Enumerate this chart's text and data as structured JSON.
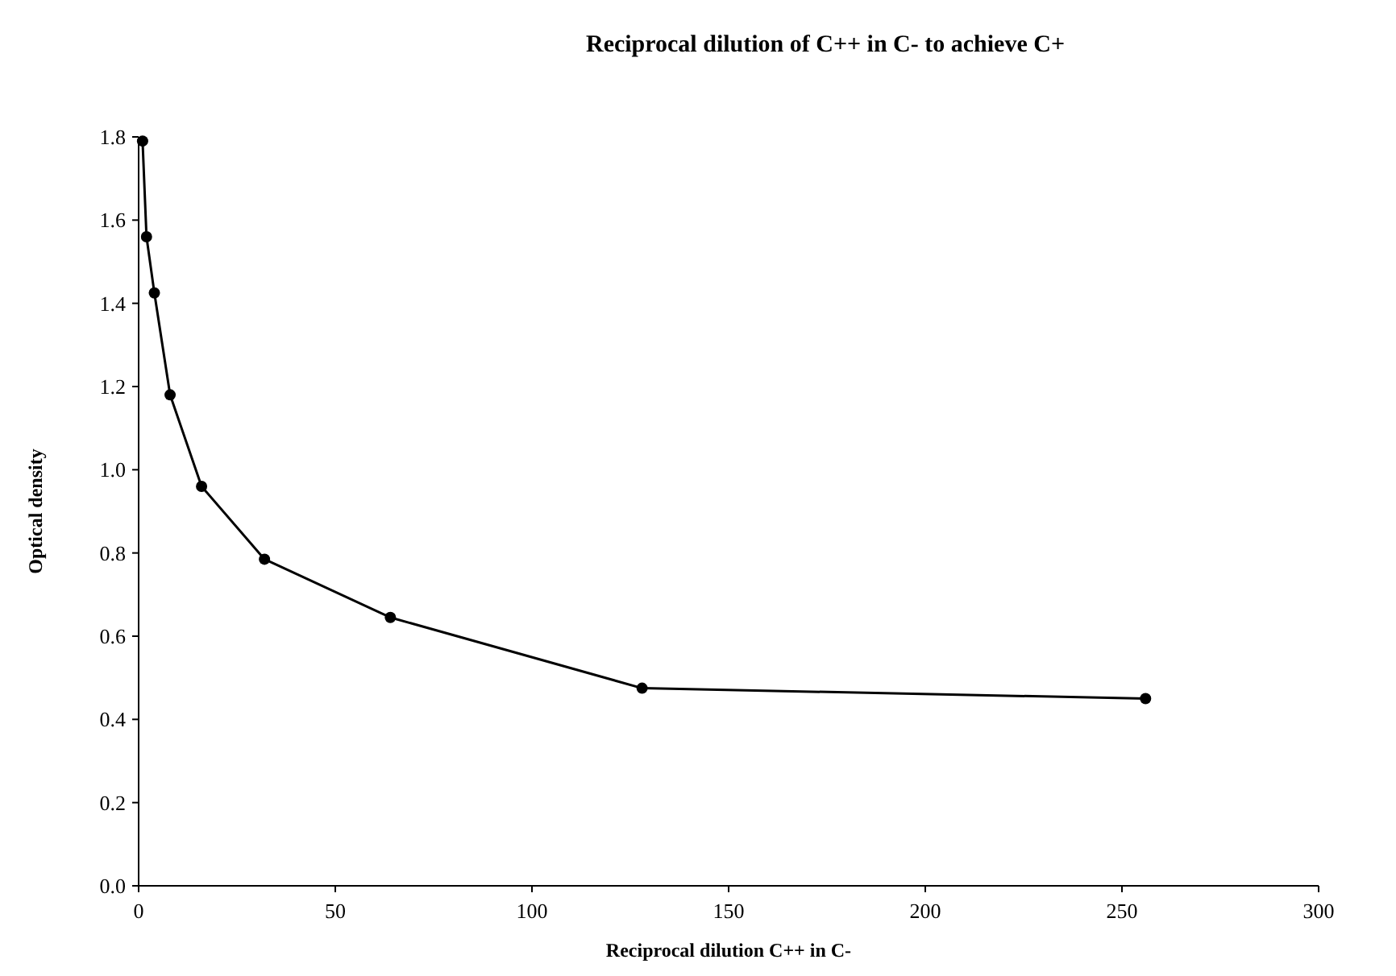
{
  "chart_data": {
    "type": "line",
    "title": "Reciprocal dilution of C++ in C- to achieve C+",
    "xlabel": "Reciprocal dilution C++ in C-",
    "ylabel": "Optical density",
    "x": [
      1,
      2,
      4,
      8,
      16,
      32,
      64,
      128,
      256
    ],
    "series": [
      {
        "color": "#000000",
        "values": [
          1.79,
          1.56,
          1.425,
          1.18,
          0.96,
          0.785,
          0.645,
          0.475,
          0.45
        ]
      }
    ],
    "xlim": [
      0,
      300
    ],
    "xticks": [
      0,
      50,
      100,
      150,
      200,
      250,
      300
    ],
    "ylim": [
      0,
      1.8
    ],
    "yticks": [
      {
        "value": 0,
        "label": "0.0"
      },
      {
        "value": 0.2,
        "label": "0.2"
      },
      {
        "value": 0.4,
        "label": "0.4"
      },
      {
        "value": 0.6,
        "label": "0.6"
      },
      {
        "value": 0.8,
        "label": "0.8"
      },
      {
        "value": 1,
        "label": "1.0"
      },
      {
        "value": 1.2,
        "label": "1.2"
      },
      {
        "value": 1.4,
        "label": "1.4"
      },
      {
        "value": 1.6,
        "label": "1.6"
      },
      {
        "value": 1.8,
        "label": "1.8"
      }
    ],
    "grid": false,
    "marker": "circle",
    "line_style": "solid"
  }
}
